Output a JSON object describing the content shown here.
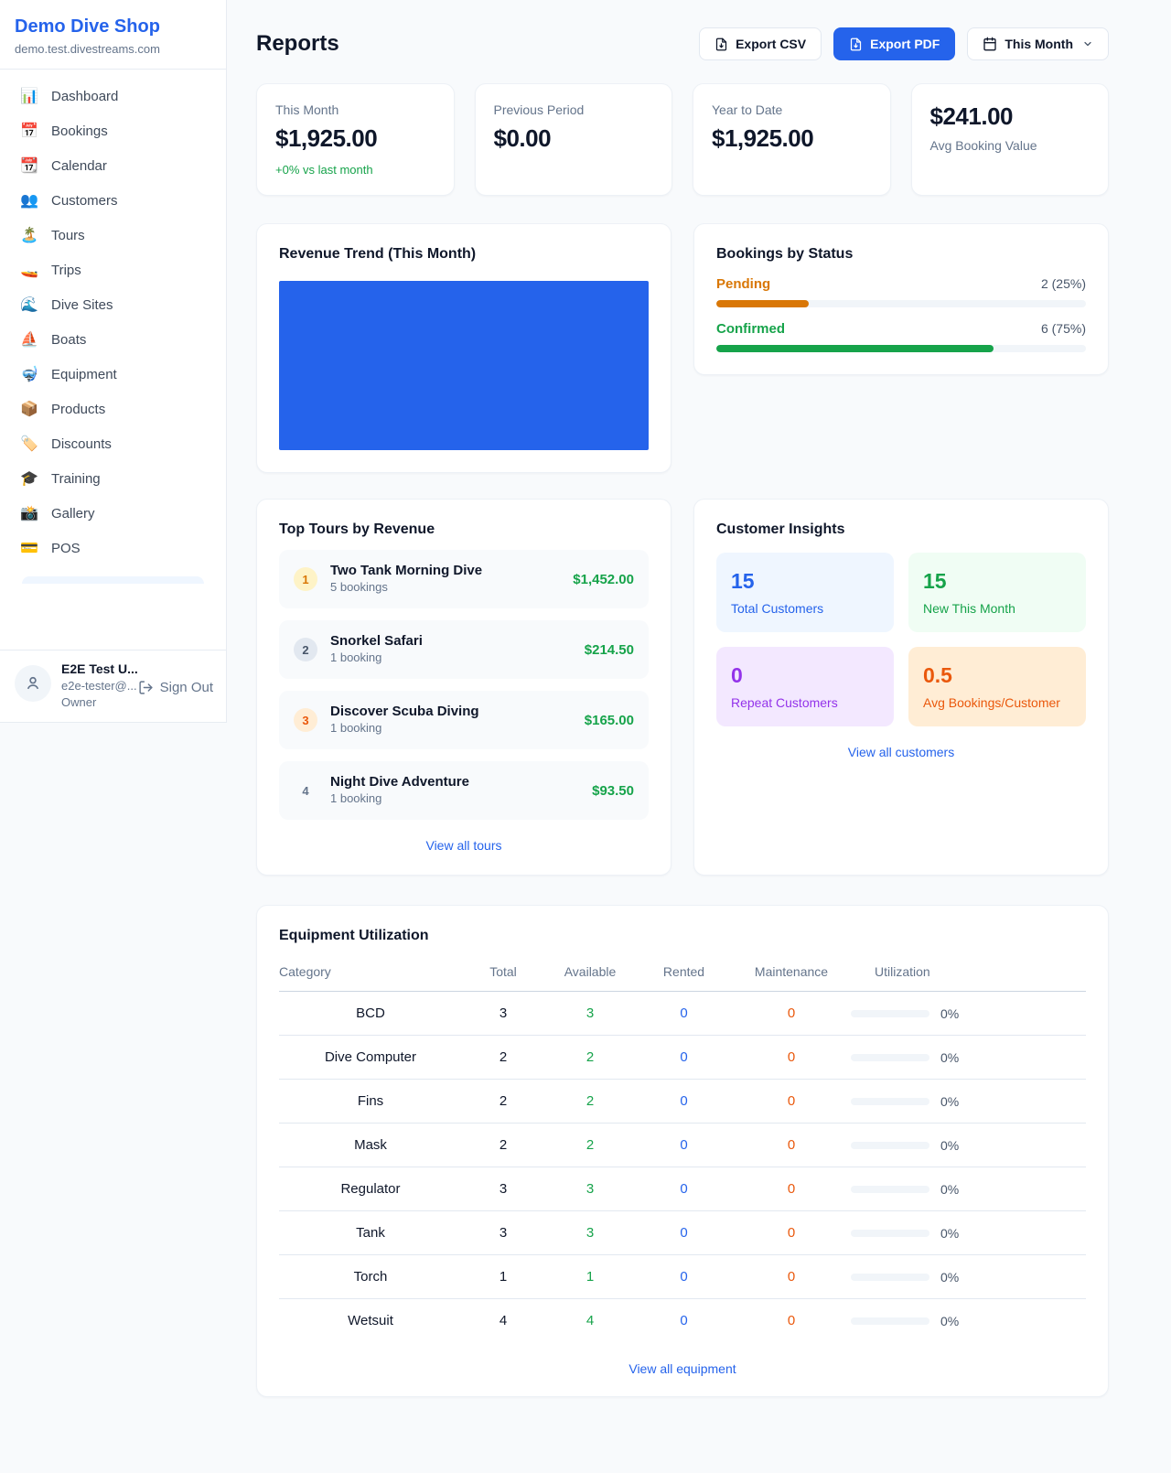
{
  "brand": {
    "name": "Demo Dive Shop",
    "domain": "demo.test.divestreams.com"
  },
  "colors": {
    "accent_blue": "#2563EB",
    "success_green": "#16A34A",
    "pending_orange": "#D97706",
    "maintenance_orange": "#EA580C",
    "purple": "#9333EA",
    "chart_fill": "#2563EB"
  },
  "sidebar": {
    "items": [
      {
        "icon": "📊",
        "label": "Dashboard"
      },
      {
        "icon": "📅",
        "label": "Bookings"
      },
      {
        "icon": "📆",
        "label": "Calendar"
      },
      {
        "icon": "👥",
        "label": "Customers"
      },
      {
        "icon": "🏝️",
        "label": "Tours"
      },
      {
        "icon": "🚤",
        "label": "Trips"
      },
      {
        "icon": "🌊",
        "label": "Dive Sites"
      },
      {
        "icon": "⛵",
        "label": "Boats"
      },
      {
        "icon": "🤿",
        "label": "Equipment"
      },
      {
        "icon": "📦",
        "label": "Products"
      },
      {
        "icon": "🏷️",
        "label": "Discounts"
      },
      {
        "icon": "🎓",
        "label": "Training"
      },
      {
        "icon": "📸",
        "label": "Gallery"
      },
      {
        "icon": "💳",
        "label": "POS"
      }
    ],
    "user": {
      "name": "E2E Test U...",
      "email": "e2e-tester@...",
      "role": "Owner",
      "sign_out": "Sign Out"
    }
  },
  "header": {
    "title": "Reports",
    "export_csv": "Export CSV",
    "export_pdf": "Export PDF",
    "period": "This Month"
  },
  "stats": [
    {
      "label": "This Month",
      "value": "$1,925.00",
      "delta": "+0% vs last month"
    },
    {
      "label": "Previous Period",
      "value": "$0.00"
    },
    {
      "label": "Year to Date",
      "value": "$1,925.00"
    },
    {
      "label": "Avg Booking Value",
      "value": "$241.00"
    }
  ],
  "revenue_trend": {
    "title": "Revenue Trend (This Month)"
  },
  "bookings_by_status": {
    "title": "Bookings by Status",
    "rows": [
      {
        "label": "Pending",
        "count_text": "2 (25%)",
        "pct": 25
      },
      {
        "label": "Confirmed",
        "count_text": "6 (75%)",
        "pct": 75
      }
    ]
  },
  "top_tours": {
    "title": "Top Tours by Revenue",
    "link": "View all tours",
    "items": [
      {
        "rank": "1",
        "name": "Two Tank Morning Dive",
        "sub": "5 bookings",
        "amount": "$1,452.00"
      },
      {
        "rank": "2",
        "name": "Snorkel Safari",
        "sub": "1 booking",
        "amount": "$214.50"
      },
      {
        "rank": "3",
        "name": "Discover Scuba Diving",
        "sub": "1 booking",
        "amount": "$165.00"
      },
      {
        "rank": "4",
        "name": "Night Dive Adventure",
        "sub": "1 booking",
        "amount": "$93.50"
      }
    ]
  },
  "customer_insights": {
    "title": "Customer Insights",
    "link": "View all customers",
    "tiles": [
      {
        "value": "15",
        "label": "Total Customers"
      },
      {
        "value": "15",
        "label": "New This Month"
      },
      {
        "value": "0",
        "label": "Repeat Customers"
      },
      {
        "value": "0.5",
        "label": "Avg Bookings/Customer"
      }
    ]
  },
  "equipment": {
    "title": "Equipment Utilization",
    "link": "View all equipment",
    "columns": [
      "Category",
      "Total",
      "Available",
      "Rented",
      "Maintenance",
      "Utilization"
    ],
    "rows": [
      {
        "category": "BCD",
        "total": "3",
        "available": "3",
        "rented": "0",
        "maintenance": "0",
        "utilization": "0%",
        "utilization_pct": 0
      },
      {
        "category": "Dive Computer",
        "total": "2",
        "available": "2",
        "rented": "0",
        "maintenance": "0",
        "utilization": "0%",
        "utilization_pct": 0
      },
      {
        "category": "Fins",
        "total": "2",
        "available": "2",
        "rented": "0",
        "maintenance": "0",
        "utilization": "0%",
        "utilization_pct": 0
      },
      {
        "category": "Mask",
        "total": "2",
        "available": "2",
        "rented": "0",
        "maintenance": "0",
        "utilization": "0%",
        "utilization_pct": 0
      },
      {
        "category": "Regulator",
        "total": "3",
        "available": "3",
        "rented": "0",
        "maintenance": "0",
        "utilization": "0%",
        "utilization_pct": 0
      },
      {
        "category": "Tank",
        "total": "3",
        "available": "3",
        "rented": "0",
        "maintenance": "0",
        "utilization": "0%",
        "utilization_pct": 0
      },
      {
        "category": "Torch",
        "total": "1",
        "available": "1",
        "rented": "0",
        "maintenance": "0",
        "utilization": "0%",
        "utilization_pct": 0
      },
      {
        "category": "Wetsuit",
        "total": "4",
        "available": "4",
        "rented": "0",
        "maintenance": "0",
        "utilization": "0%",
        "utilization_pct": 0
      }
    ]
  }
}
